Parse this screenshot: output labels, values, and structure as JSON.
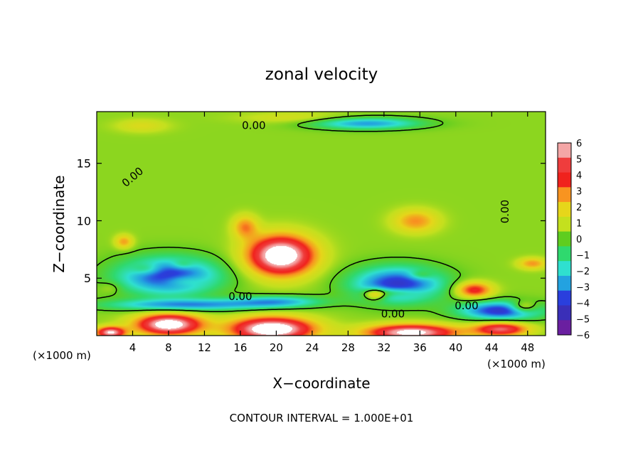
{
  "chart_data": {
    "type": "heatmap",
    "title": "zonal velocity",
    "xlabel": "X−coordinate",
    "ylabel": "Z−coordinate",
    "x_unit_left": "(×1000 m)",
    "x_unit_right": "(×1000 m)",
    "footer": "CONTOUR INTERVAL = 1.000E+01",
    "xlim": [
      0,
      50
    ],
    "ylim": [
      0,
      19.5
    ],
    "x_ticks": [
      4,
      8,
      12,
      16,
      20,
      24,
      28,
      32,
      36,
      40,
      44,
      48
    ],
    "y_ticks": [
      5,
      10,
      15
    ],
    "contour_labels": [
      {
        "text": "0.00",
        "x": 17.5,
        "y": 18.3,
        "rotate": 0
      },
      {
        "text": "0.00",
        "x": 4.0,
        "y": 13.8,
        "rotate": -40
      },
      {
        "text": "0.00",
        "x": 45.5,
        "y": 10.8,
        "rotate": -90
      },
      {
        "text": "0.00",
        "x": 16.0,
        "y": 3.4,
        "rotate": 0
      },
      {
        "text": "0.00",
        "x": 33.0,
        "y": 1.9,
        "rotate": 0
      },
      {
        "text": "0.00",
        "x": 41.2,
        "y": 2.6,
        "rotate": 0
      }
    ],
    "colorbar": {
      "labels": [
        6,
        5,
        4,
        3,
        2,
        1,
        0,
        -1,
        -2,
        -3,
        -4,
        -5,
        -6
      ],
      "colors": [
        "#f4a6a6",
        "#ef3d3d",
        "#f0221d",
        "#f89420",
        "#e6d61a",
        "#c4e01e",
        "#5fcd1f",
        "#2fd96e",
        "#2fe0cf",
        "#23a2e0",
        "#2a3fdd",
        "#3a2fb8",
        "#6a1fa0"
      ]
    },
    "centers": [
      {
        "x": 20.5,
        "y": 7.0,
        "v": 7.5,
        "sx": 3.6,
        "sy": 1.7
      },
      {
        "x": 19.5,
        "y": 0.6,
        "v": 7.5,
        "sx": 4.5,
        "sy": 1.0
      },
      {
        "x": 8.0,
        "y": 1.0,
        "v": 7.0,
        "sx": 3.6,
        "sy": 0.9
      },
      {
        "x": 35.0,
        "y": 0.3,
        "v": 6.5,
        "sx": 5.0,
        "sy": 0.7
      },
      {
        "x": 45.0,
        "y": 0.6,
        "v": 5.0,
        "sx": 3.0,
        "sy": 0.6
      },
      {
        "x": 1.5,
        "y": 0.3,
        "v": 6.0,
        "sx": 1.6,
        "sy": 0.5
      },
      {
        "x": 35.5,
        "y": 10.0,
        "v": 2.6,
        "sx": 2.5,
        "sy": 1.0
      },
      {
        "x": 16.5,
        "y": 9.5,
        "v": 2.6,
        "sx": 1.4,
        "sy": 1.0
      },
      {
        "x": 3.0,
        "y": 8.2,
        "v": 2.4,
        "sx": 1.0,
        "sy": 0.6
      },
      {
        "x": 42.0,
        "y": 4.0,
        "v": 4.0,
        "sx": 2.0,
        "sy": 0.7
      },
      {
        "x": 48.5,
        "y": 6.3,
        "v": 2.5,
        "sx": 1.6,
        "sy": 0.5
      },
      {
        "x": 5.0,
        "y": 18.3,
        "v": 1.2,
        "sx": 3.0,
        "sy": 0.6
      },
      {
        "x": 33.0,
        "y": 3.8,
        "v": 2.0,
        "sx": 3.0,
        "sy": 0.4
      },
      {
        "x": 8.0,
        "y": 5.2,
        "v": -5.0,
        "sx": 5.5,
        "sy": 1.6
      },
      {
        "x": 5.5,
        "y": 5.8,
        "v": 1.5,
        "sx": 1.6,
        "sy": 0.5
      },
      {
        "x": 9.5,
        "y": 4.8,
        "v": 1.5,
        "sx": 2.2,
        "sy": 0.5
      },
      {
        "x": 9.5,
        "y": 6.2,
        "v": 1.2,
        "sx": 1.2,
        "sy": 0.4
      },
      {
        "x": 1.5,
        "y": 4.2,
        "v": 0.8,
        "sx": 1.2,
        "sy": 0.5
      },
      {
        "x": 33.5,
        "y": 4.5,
        "v": -5.0,
        "sx": 5.0,
        "sy": 1.5
      },
      {
        "x": 31.0,
        "y": 3.6,
        "v": 3.0,
        "sx": 1.2,
        "sy": 0.5
      },
      {
        "x": 36.0,
        "y": 5.3,
        "v": 1.5,
        "sx": 1.3,
        "sy": 0.4
      },
      {
        "x": 45.0,
        "y": 2.2,
        "v": -5.0,
        "sx": 4.5,
        "sy": 0.8
      },
      {
        "x": 47.5,
        "y": 2.5,
        "v": 3.0,
        "sx": 1.5,
        "sy": 0.5
      },
      {
        "x": 10.0,
        "y": 2.7,
        "v": -3.5,
        "sx": 9.0,
        "sy": 0.5
      },
      {
        "x": 20.0,
        "y": 3.0,
        "v": -3.0,
        "sx": 5.0,
        "sy": 0.5
      },
      {
        "x": 30.0,
        "y": 18.5,
        "v": -3.5,
        "sx": 6.0,
        "sy": 0.5
      },
      {
        "x": 22.0,
        "y": 19.0,
        "v": 1.0,
        "sx": 6.0,
        "sy": 0.5
      }
    ]
  }
}
